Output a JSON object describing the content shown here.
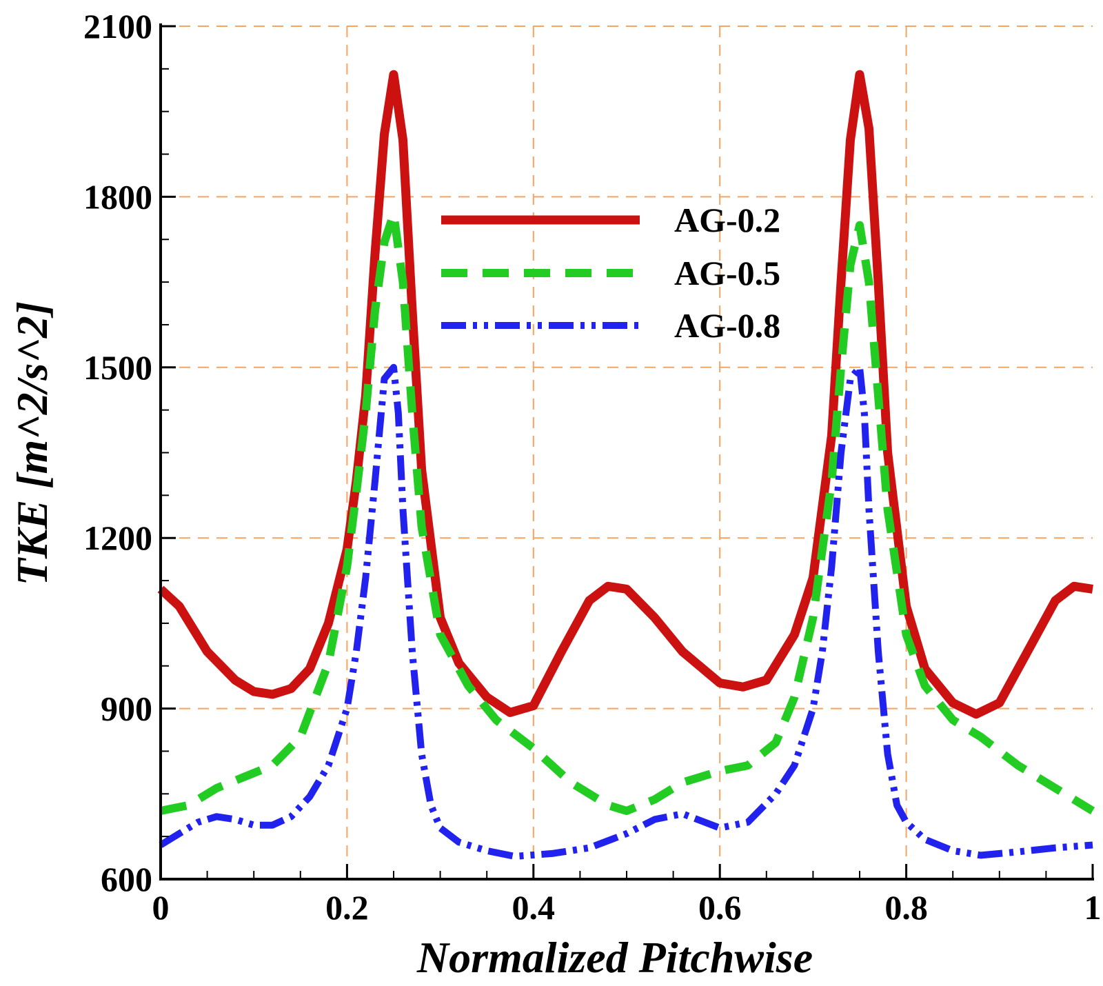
{
  "chart_data": {
    "type": "line",
    "title": "",
    "xlabel": "Normalized Pitchwise",
    "ylabel": "TKE [m^2/s^2]",
    "xlim": [
      0,
      1
    ],
    "ylim": [
      600,
      2100
    ],
    "grid": true,
    "legend_position": "top-center",
    "x_ticks": [
      0,
      0.2,
      0.4,
      0.6,
      0.8,
      1
    ],
    "x_tick_labels": [
      "0",
      "0.2",
      "0.4",
      "0.6",
      "0.8",
      "1"
    ],
    "y_ticks": [
      600,
      900,
      1200,
      1500,
      1800,
      2100
    ],
    "y_tick_labels": [
      "600",
      "900",
      "1200",
      "1500",
      "1800",
      "2100"
    ],
    "series": [
      {
        "name": "AG-0.2",
        "color": "#cc1111",
        "style": "solid",
        "x": [
          0,
          0.02,
          0.05,
          0.08,
          0.1,
          0.12,
          0.14,
          0.16,
          0.18,
          0.2,
          0.21,
          0.22,
          0.23,
          0.24,
          0.25,
          0.26,
          0.27,
          0.28,
          0.3,
          0.32,
          0.35,
          0.375,
          0.4,
          0.43,
          0.46,
          0.48,
          0.5,
          0.53,
          0.56,
          0.6,
          0.625,
          0.65,
          0.68,
          0.7,
          0.72,
          0.73,
          0.74,
          0.75,
          0.76,
          0.77,
          0.78,
          0.8,
          0.82,
          0.85,
          0.875,
          0.9,
          0.93,
          0.96,
          0.98,
          1.0
        ],
        "y": [
          1110,
          1080,
          1000,
          950,
          930,
          925,
          935,
          970,
          1050,
          1180,
          1300,
          1450,
          1700,
          1910,
          2015,
          1900,
          1600,
          1320,
          1060,
          980,
          920,
          893,
          905,
          1000,
          1090,
          1115,
          1110,
          1060,
          1000,
          945,
          938,
          950,
          1030,
          1130,
          1380,
          1650,
          1900,
          2015,
          1920,
          1650,
          1350,
          1080,
          970,
          910,
          890,
          910,
          1000,
          1090,
          1115,
          1110
        ]
      },
      {
        "name": "AG-0.5",
        "color": "#22cc22",
        "style": "dashed",
        "x": [
          0,
          0.03,
          0.06,
          0.09,
          0.12,
          0.15,
          0.18,
          0.2,
          0.21,
          0.22,
          0.23,
          0.24,
          0.25,
          0.26,
          0.27,
          0.28,
          0.3,
          0.33,
          0.36,
          0.4,
          0.44,
          0.48,
          0.5,
          0.53,
          0.56,
          0.6,
          0.63,
          0.66,
          0.68,
          0.7,
          0.72,
          0.73,
          0.74,
          0.75,
          0.76,
          0.77,
          0.78,
          0.8,
          0.82,
          0.85,
          0.88,
          0.92,
          0.96,
          1.0
        ],
        "y": [
          720,
          730,
          760,
          780,
          800,
          850,
          980,
          1150,
          1280,
          1420,
          1600,
          1720,
          1770,
          1650,
          1420,
          1220,
          1030,
          940,
          880,
          830,
          770,
          730,
          720,
          740,
          770,
          790,
          800,
          840,
          920,
          1060,
          1300,
          1500,
          1680,
          1750,
          1650,
          1450,
          1250,
          1030,
          940,
          880,
          850,
          800,
          760,
          720
        ]
      },
      {
        "name": "AG-0.8",
        "color": "#2222ee",
        "style": "dashdotdot",
        "x": [
          0,
          0.02,
          0.04,
          0.06,
          0.08,
          0.1,
          0.12,
          0.14,
          0.16,
          0.18,
          0.2,
          0.21,
          0.22,
          0.23,
          0.24,
          0.25,
          0.255,
          0.26,
          0.27,
          0.28,
          0.29,
          0.3,
          0.32,
          0.35,
          0.38,
          0.42,
          0.46,
          0.5,
          0.53,
          0.56,
          0.6,
          0.63,
          0.66,
          0.68,
          0.7,
          0.71,
          0.72,
          0.73,
          0.74,
          0.75,
          0.755,
          0.76,
          0.77,
          0.78,
          0.79,
          0.8,
          0.82,
          0.85,
          0.88,
          0.92,
          0.96,
          1.0
        ],
        "y": [
          660,
          680,
          700,
          710,
          705,
          695,
          695,
          710,
          745,
          800,
          900,
          1000,
          1130,
          1300,
          1480,
          1500,
          1420,
          1250,
          1000,
          820,
          730,
          690,
          665,
          650,
          640,
          645,
          655,
          680,
          705,
          715,
          690,
          700,
          750,
          800,
          900,
          1000,
          1150,
          1350,
          1480,
          1500,
          1420,
          1250,
          1000,
          820,
          730,
          700,
          670,
          650,
          642,
          648,
          655,
          660
        ]
      }
    ]
  }
}
